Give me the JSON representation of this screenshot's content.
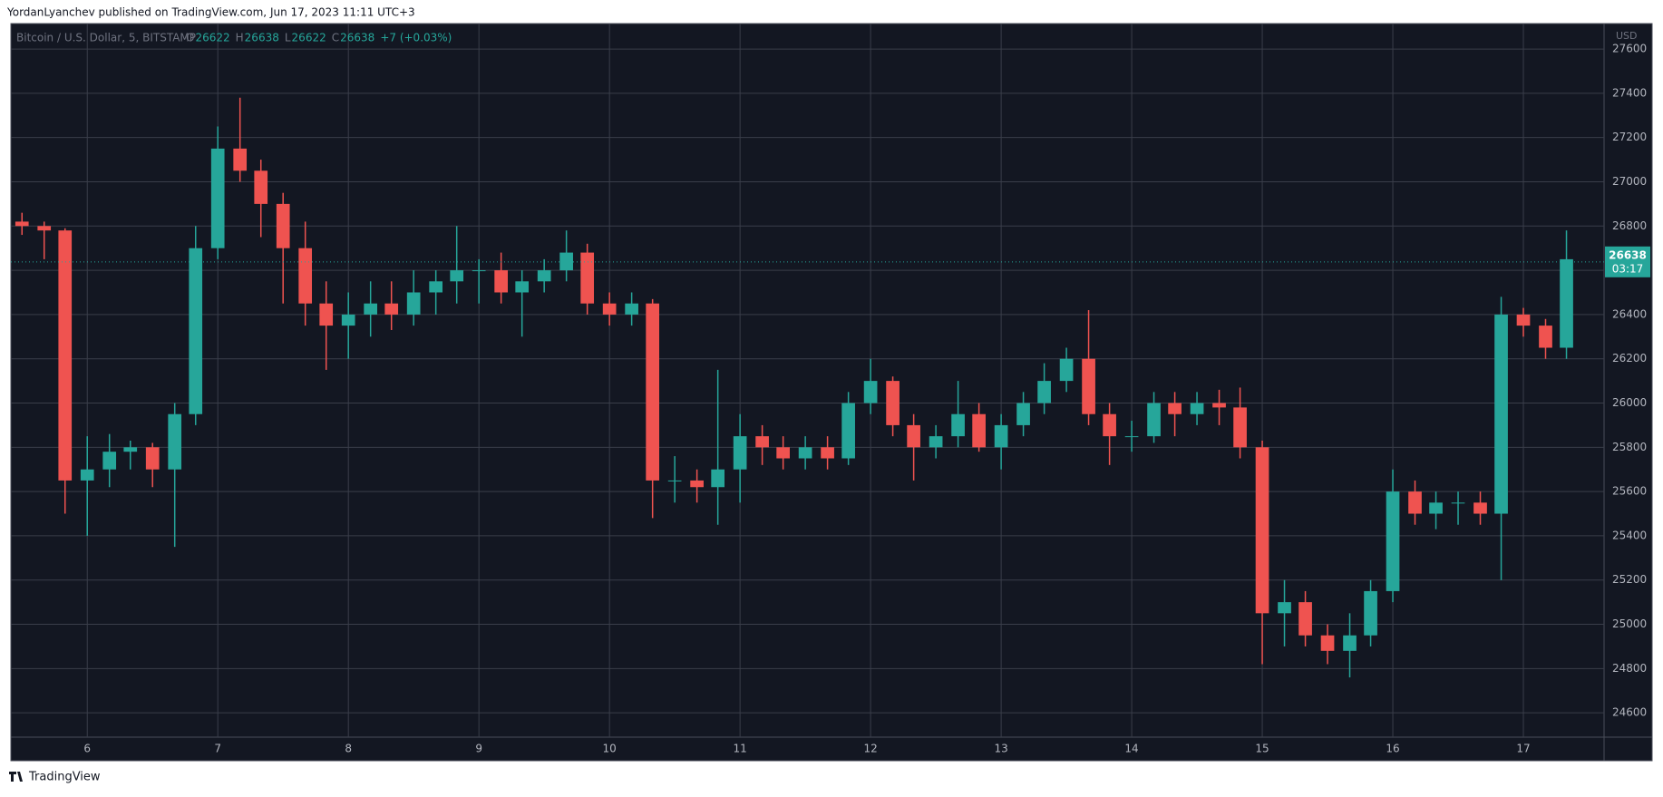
{
  "header": {
    "byline": "YordanLyanchev published on TradingView.com, Jun 17, 2023 11:11 UTC+3"
  },
  "footer": {
    "brand": "TradingView"
  },
  "chart_data": {
    "type": "candlestick",
    "symbol": "Bitcoin / U.S. Dollar, 5, BITSTAMP",
    "ohlc_legend": [
      {
        "label": "O",
        "value": 26622
      },
      {
        "label": "H",
        "value": 26638
      },
      {
        "label": "L",
        "value": 26622
      },
      {
        "label": "C",
        "value": 26638
      }
    ],
    "change": "+7 (+0.03%)",
    "currency": "USD",
    "last_price": 26638,
    "countdown": "03:17",
    "up_color": "#26a69a",
    "down_color": "#ef5350",
    "grid": true,
    "xlim": [
      5.415,
      17.618
    ],
    "xticks": [
      6,
      7,
      8,
      9,
      10,
      11,
      12,
      13,
      14,
      15,
      16,
      17
    ],
    "ylim": [
      24490,
      27715
    ],
    "yticks": [
      24600,
      24800,
      25000,
      25200,
      25400,
      25600,
      25800,
      26000,
      26200,
      26400,
      26600,
      26800,
      27000,
      27200,
      27400,
      27600
    ],
    "x": [
      5.5,
      5.67,
      5.83,
      6.0,
      6.17,
      6.33,
      6.5,
      6.67,
      6.83,
      7.0,
      7.17,
      7.33,
      7.5,
      7.67,
      7.83,
      8.0,
      8.17,
      8.33,
      8.5,
      8.67,
      8.83,
      9.0,
      9.17,
      9.33,
      9.5,
      9.67,
      9.83,
      10.0,
      10.17,
      10.33,
      10.5,
      10.67,
      10.83,
      11.0,
      11.17,
      11.33,
      11.5,
      11.67,
      11.83,
      12.0,
      12.17,
      12.33,
      12.5,
      12.67,
      12.83,
      13.0,
      13.17,
      13.33,
      13.5,
      13.67,
      13.83,
      14.0,
      14.17,
      14.33,
      14.5,
      14.67,
      14.83,
      15.0,
      15.17,
      15.33,
      15.5,
      15.67,
      15.83,
      16.0,
      16.17,
      16.33,
      16.5,
      16.67,
      16.83,
      17.0,
      17.17,
      17.33
    ],
    "open": [
      26820,
      26800,
      26780,
      25650,
      25700,
      25780,
      25800,
      25700,
      25950,
      26700,
      27150,
      27050,
      26900,
      26700,
      26450,
      26350,
      26400,
      26450,
      26400,
      26500,
      26550,
      26600,
      26600,
      26500,
      26550,
      26600,
      26680,
      26450,
      26400,
      26450,
      25650,
      25650,
      25620,
      25700,
      25850,
      25800,
      25750,
      25800,
      25750,
      26000,
      26100,
      25900,
      25800,
      25850,
      25950,
      25800,
      25900,
      26000,
      26100,
      26200,
      25950,
      25850,
      25850,
      26000,
      25950,
      26000,
      25980,
      25800,
      25050,
      25100,
      24950,
      24880,
      24950,
      25150,
      25600,
      25500,
      25550,
      25550,
      25500,
      26400,
      26350,
      26250
    ],
    "high": [
      26860,
      26820,
      26790,
      25850,
      25860,
      25830,
      25820,
      26000,
      26800,
      27250,
      27380,
      27100,
      26950,
      26820,
      26550,
      26500,
      26550,
      26550,
      26600,
      26600,
      26800,
      26650,
      26680,
      26600,
      26650,
      26780,
      26720,
      26500,
      26500,
      26470,
      25760,
      25700,
      26150,
      25950,
      25900,
      25850,
      25850,
      25850,
      26050,
      26200,
      26120,
      25950,
      25900,
      26100,
      26000,
      25950,
      26050,
      26180,
      26250,
      26420,
      26000,
      25920,
      26050,
      26050,
      26050,
      26060,
      26070,
      25830,
      25200,
      25150,
      25000,
      25050,
      25200,
      25700,
      25650,
      25600,
      25600,
      25600,
      26480,
      26430,
      26380,
      26780
    ],
    "low": [
      26760,
      26650,
      25500,
      25400,
      25620,
      25700,
      25620,
      25350,
      25900,
      26650,
      27000,
      26750,
      26450,
      26350,
      26150,
      26200,
      26300,
      26330,
      26350,
      26400,
      26450,
      26450,
      26450,
      26300,
      26500,
      26550,
      26400,
      26350,
      26350,
      25480,
      25550,
      25550,
      25450,
      25550,
      25720,
      25700,
      25700,
      25700,
      25720,
      25950,
      25850,
      25650,
      25750,
      25800,
      25780,
      25700,
      25850,
      25950,
      26050,
      25900,
      25720,
      25780,
      25820,
      25850,
      25900,
      25900,
      25750,
      24820,
      24900,
      24900,
      24820,
      24760,
      24900,
      25100,
      25450,
      25430,
      25450,
      25450,
      25200,
      26300,
      26200,
      26200
    ],
    "close": [
      26800,
      26780,
      25650,
      25700,
      25780,
      25800,
      25700,
      25950,
      26700,
      27150,
      27050,
      26900,
      26700,
      26450,
      26350,
      26400,
      26450,
      26400,
      26500,
      26550,
      26600,
      26600,
      26500,
      26550,
      26600,
      26680,
      26450,
      26400,
      26450,
      25650,
      25650,
      25620,
      25700,
      25850,
      25800,
      25750,
      25800,
      25750,
      26000,
      26100,
      25900,
      25800,
      25850,
      25950,
      25800,
      25900,
      26000,
      26100,
      26200,
      25950,
      25850,
      25850,
      26000,
      25950,
      26000,
      25980,
      25800,
      25050,
      25100,
      24950,
      24880,
      24950,
      25150,
      25600,
      25500,
      25550,
      25550,
      25500,
      26400,
      26350,
      26250,
      26650
    ]
  }
}
